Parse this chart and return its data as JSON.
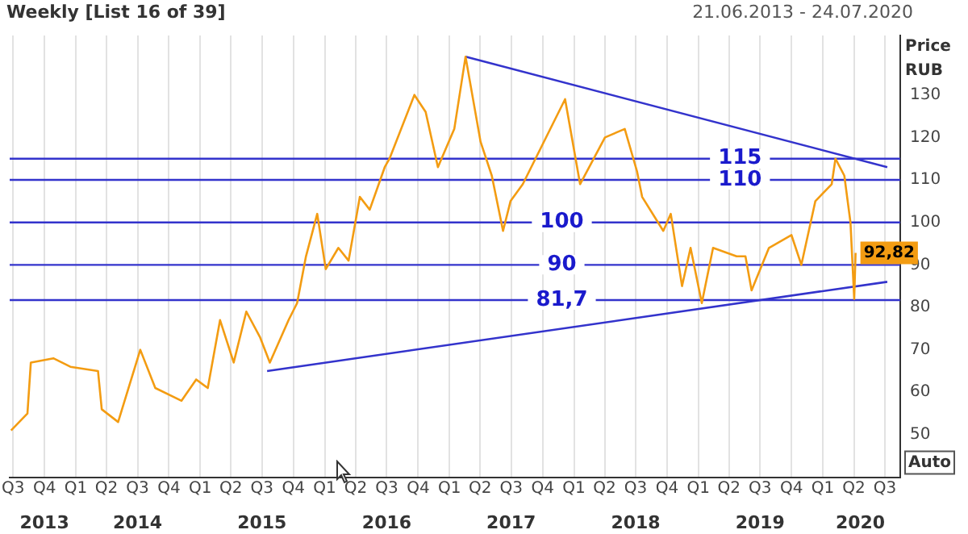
{
  "chart_data": {
    "type": "line",
    "title": "Weekly [List 16 of 39]",
    "subtitle": "21.06.2013 - 24.07.2020",
    "ylabel": "Price RUB",
    "xlim": [
      "2013-06-21",
      "2020-08-15"
    ],
    "ylim": [
      40,
      144
    ],
    "yticks": [
      50,
      60,
      70,
      80,
      90,
      100,
      110,
      120,
      130
    ],
    "xticks": [
      {
        "value": "2013-07-01",
        "label": "Q3"
      },
      {
        "value": "2013-10-01",
        "label": "Q4"
      },
      {
        "value": "2014-01-01",
        "label": "Q1"
      },
      {
        "value": "2014-04-01",
        "label": "Q2"
      },
      {
        "value": "2014-07-01",
        "label": "Q3"
      },
      {
        "value": "2014-10-01",
        "label": "Q4"
      },
      {
        "value": "2015-01-01",
        "label": "Q1"
      },
      {
        "value": "2015-04-01",
        "label": "Q2"
      },
      {
        "value": "2015-07-01",
        "label": "Q3"
      },
      {
        "value": "2015-10-01",
        "label": "Q4"
      },
      {
        "value": "2016-01-01",
        "label": "Q1"
      },
      {
        "value": "2016-04-01",
        "label": "Q2"
      },
      {
        "value": "2016-07-01",
        "label": "Q3"
      },
      {
        "value": "2016-10-01",
        "label": "Q4"
      },
      {
        "value": "2017-01-01",
        "label": "Q1"
      },
      {
        "value": "2017-04-01",
        "label": "Q2"
      },
      {
        "value": "2017-07-01",
        "label": "Q3"
      },
      {
        "value": "2017-10-01",
        "label": "Q4"
      },
      {
        "value": "2018-01-01",
        "label": "Q1"
      },
      {
        "value": "2018-04-01",
        "label": "Q2"
      },
      {
        "value": "2018-07-01",
        "label": "Q3"
      },
      {
        "value": "2018-10-01",
        "label": "Q4"
      },
      {
        "value": "2019-01-01",
        "label": "Q1"
      },
      {
        "value": "2019-04-01",
        "label": "Q2"
      },
      {
        "value": "2019-07-01",
        "label": "Q3"
      },
      {
        "value": "2019-10-01",
        "label": "Q4"
      },
      {
        "value": "2020-01-01",
        "label": "Q1"
      },
      {
        "value": "2020-04-01",
        "label": "Q2"
      },
      {
        "value": "2020-07-01",
        "label": "Q3"
      }
    ],
    "x2lim": [
      "2013-06-21",
      "2020-08-15"
    ],
    "x2ticks": [
      {
        "value": "2013-10-01",
        "label": "2013"
      },
      {
        "value": "2014-07-01",
        "label": "2014"
      },
      {
        "value": "2015-07-01",
        "label": "2015"
      },
      {
        "value": "2016-07-01",
        "label": "2016"
      },
      {
        "value": "2017-07-01",
        "label": "2017"
      },
      {
        "value": "2018-07-01",
        "label": "2018"
      },
      {
        "value": "2019-07-01",
        "label": "2019"
      },
      {
        "value": "2020-04-20",
        "label": "2020"
      }
    ],
    "grid": "x",
    "legend": false,
    "series": [
      {
        "type": "line",
        "color": "#f39c12",
        "x": [
          "2013-06-25",
          "2013-08-12",
          "2013-08-22",
          "2013-10-27",
          "2013-12-16",
          "2014-03-07",
          "2014-03-18",
          "2014-05-05",
          "2014-07-09",
          "2014-08-22",
          "2014-11-07",
          "2014-12-20",
          "2015-01-23",
          "2015-02-28",
          "2015-04-09",
          "2015-05-16",
          "2015-06-25",
          "2015-07-24",
          "2015-09-17",
          "2015-10-12",
          "2015-11-07",
          "2015-12-10",
          "2016-01-04",
          "2016-02-10",
          "2016-03-11",
          "2016-04-13",
          "2016-05-12",
          "2016-06-25",
          "2016-07-09",
          "2016-09-20",
          "2016-10-23",
          "2016-11-28",
          "2017-01-15",
          "2017-02-17",
          "2017-04-02",
          "2017-05-05",
          "2017-06-07",
          "2017-06-29",
          "2017-08-04",
          "2017-12-06",
          "2018-01-19",
          "2018-04-02",
          "2018-05-30",
          "2018-07-05",
          "2018-07-20",
          "2018-09-20",
          "2018-10-12",
          "2018-11-14",
          "2018-12-09",
          "2019-01-11",
          "2019-02-13",
          "2019-04-23",
          "2019-05-19",
          "2019-06-06",
          "2019-07-27",
          "2019-10-01",
          "2019-10-30",
          "2019-12-10",
          "2020-01-27",
          "2020-02-07",
          "2020-03-04",
          "2020-03-22",
          "2020-04-02",
          "2020-04-06"
        ],
        "values": [
          51,
          55,
          67,
          68,
          66,
          65,
          56,
          53,
          70,
          61,
          58,
          63,
          61,
          77,
          67,
          79,
          73,
          67,
          77,
          81,
          92,
          102,
          89,
          94,
          91,
          106,
          103,
          113,
          115,
          130,
          126,
          113,
          122,
          139,
          119,
          111,
          98,
          105,
          109,
          129,
          109,
          120,
          122,
          112,
          106,
          98,
          102,
          85,
          94,
          81,
          94,
          92,
          92,
          84,
          94,
          97,
          90,
          105,
          109,
          115,
          111,
          100,
          82,
          92.82
        ],
        "value_labels": [
          null,
          null,
          null,
          null,
          null,
          null,
          null,
          null,
          null,
          null,
          null,
          null,
          null,
          null,
          null,
          null,
          null,
          null,
          null,
          null,
          null,
          null,
          null,
          null,
          null,
          null,
          null,
          null,
          null,
          null,
          null,
          null,
          null,
          null,
          null,
          null,
          null,
          null,
          null,
          null,
          null,
          null,
          null,
          null,
          null,
          null,
          null,
          null,
          null,
          null,
          null,
          null,
          null,
          null,
          null,
          null,
          null,
          null,
          null,
          null,
          null,
          null,
          null,
          "92,82"
        ]
      },
      {
        "type": "line",
        "color": "#3333cc",
        "x": [
          "2017-02-17",
          "2020-07-08"
        ],
        "values": [
          139,
          113
        ]
      },
      {
        "type": "line",
        "color": "#3333cc",
        "x": [
          "2015-07-16",
          "2020-07-08"
        ],
        "values": [
          65,
          86
        ]
      }
    ],
    "ref_lines": [
      {
        "axis": "y",
        "value": 115,
        "label": "115",
        "color": "#3333cc"
      },
      {
        "axis": "y",
        "value": 110,
        "label": "110",
        "color": "#3333cc"
      },
      {
        "axis": "y",
        "value": 100,
        "label": "100",
        "color": "#3333cc"
      },
      {
        "axis": "y",
        "value": 90,
        "label": "90",
        "color": "#3333cc"
      },
      {
        "axis": "y",
        "value": 81.7,
        "label": "81,7",
        "color": "#3333cc"
      }
    ],
    "annotations": [
      "Auto"
    ]
  }
}
